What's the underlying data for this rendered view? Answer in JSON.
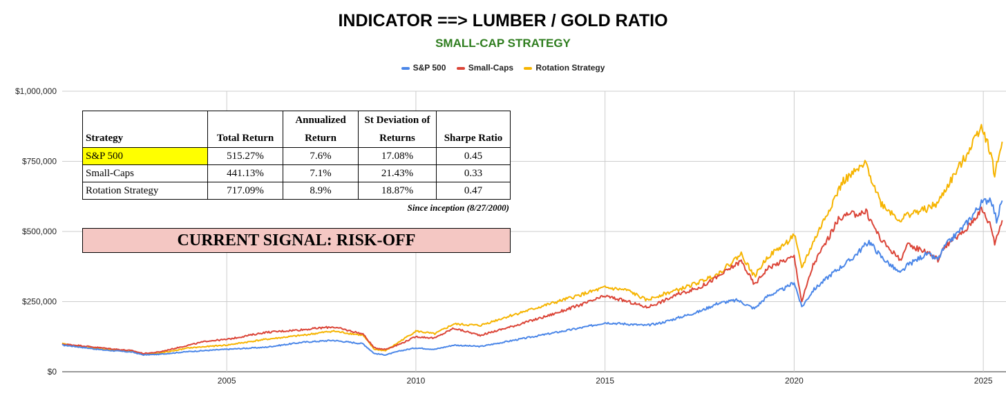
{
  "chart_data": {
    "type": "line",
    "title": "INDICATOR ==> LUMBER / GOLD RATIO",
    "subtitle": "SMALL-CAP STRATEGY",
    "legend_position": "top-center",
    "grid": true,
    "ylim": [
      0,
      1000000
    ],
    "y_ticks": [
      0,
      250000,
      500000,
      750000,
      1000000
    ],
    "y_tick_labels": [
      "$0",
      "$250,000",
      "$500,000",
      "$750,000",
      "$1,000,000"
    ],
    "xlim": [
      2000.65,
      2025.6
    ],
    "x_ticks": [
      2005,
      2010,
      2015,
      2020,
      2025
    ],
    "x_tick_labels": [
      "2005",
      "2010",
      "2015",
      "2020",
      "2025"
    ],
    "series": [
      {
        "name": "S&P 500",
        "color": "#4a86e8",
        "x": [
          2000.65,
          2001.0,
          2001.7,
          2002.5,
          2002.8,
          2003.2,
          2004.0,
          2005.0,
          2006.0,
          2007.0,
          2007.8,
          2008.6,
          2008.9,
          2009.2,
          2009.6,
          2010.0,
          2010.5,
          2011.0,
          2011.7,
          2012.5,
          2013.5,
          2014.5,
          2015.0,
          2015.6,
          2016.1,
          2016.5,
          2017.0,
          2017.5,
          2018.0,
          2018.5,
          2018.95,
          2019.3,
          2019.8,
          2020.0,
          2020.2,
          2020.5,
          2021.0,
          2021.5,
          2021.98,
          2022.3,
          2022.8,
          2023.0,
          2023.5,
          2023.8,
          2024.0,
          2024.5,
          2024.95,
          2025.2,
          2025.35,
          2025.5
        ],
        "values": [
          95000,
          90000,
          78000,
          70000,
          60000,
          62000,
          72000,
          80000,
          87000,
          105000,
          112000,
          100000,
          65000,
          60000,
          75000,
          85000,
          80000,
          95000,
          90000,
          110000,
          135000,
          160000,
          175000,
          170000,
          165000,
          175000,
          195000,
          215000,
          245000,
          255000,
          225000,
          270000,
          300000,
          320000,
          230000,
          290000,
          350000,
          400000,
          465000,
          410000,
          350000,
          380000,
          420000,
          400000,
          450000,
          520000,
          600000,
          620000,
          540000,
          610000
        ]
      },
      {
        "name": "Small-Caps",
        "color": "#db4437",
        "x": [
          2000.65,
          2001.0,
          2001.7,
          2002.5,
          2002.8,
          2003.2,
          2004.0,
          2004.5,
          2005.0,
          2006.0,
          2006.5,
          2007.0,
          2007.8,
          2008.6,
          2008.9,
          2009.2,
          2009.6,
          2010.0,
          2010.5,
          2011.0,
          2011.7,
          2012.5,
          2013.5,
          2014.5,
          2015.0,
          2015.6,
          2016.1,
          2016.5,
          2017.0,
          2017.5,
          2018.0,
          2018.6,
          2018.95,
          2019.3,
          2019.8,
          2020.0,
          2020.2,
          2020.5,
          2021.0,
          2021.2,
          2021.5,
          2021.9,
          2022.3,
          2022.8,
          2023.0,
          2023.5,
          2023.8,
          2024.0,
          2024.5,
          2024.95,
          2025.2,
          2025.3,
          2025.5
        ],
        "values": [
          98000,
          95000,
          85000,
          75000,
          65000,
          70000,
          95000,
          110000,
          115000,
          140000,
          145000,
          150000,
          160000,
          135000,
          85000,
          80000,
          100000,
          125000,
          120000,
          155000,
          130000,
          160000,
          200000,
          245000,
          270000,
          250000,
          230000,
          250000,
          280000,
          300000,
          340000,
          395000,
          310000,
          370000,
          400000,
          410000,
          250000,
          380000,
          500000,
          550000,
          560000,
          570000,
          470000,
          400000,
          450000,
          430000,
          400000,
          450000,
          500000,
          580000,
          520000,
          460000,
          540000
        ]
      },
      {
        "name": "Rotation Strategy",
        "color": "#f6b400",
        "x": [
          2000.65,
          2001.0,
          2001.7,
          2002.5,
          2002.8,
          2003.2,
          2004.0,
          2005.0,
          2006.0,
          2007.0,
          2007.8,
          2008.6,
          2008.9,
          2009.2,
          2009.6,
          2010.0,
          2010.5,
          2011.0,
          2011.7,
          2012.5,
          2013.5,
          2014.5,
          2015.0,
          2015.6,
          2016.1,
          2016.5,
          2017.0,
          2017.5,
          2018.0,
          2018.6,
          2018.95,
          2019.3,
          2019.8,
          2020.0,
          2020.2,
          2020.5,
          2021.0,
          2021.3,
          2021.7,
          2021.9,
          2022.3,
          2022.8,
          2023.0,
          2023.5,
          2023.8,
          2024.0,
          2024.5,
          2024.95,
          2025.2,
          2025.3,
          2025.5
        ],
        "values": [
          100000,
          92000,
          80000,
          72000,
          62000,
          65000,
          85000,
          95000,
          115000,
          130000,
          145000,
          130000,
          80000,
          75000,
          110000,
          145000,
          135000,
          170000,
          165000,
          200000,
          240000,
          280000,
          300000,
          290000,
          255000,
          275000,
          295000,
          320000,
          350000,
          420000,
          340000,
          410000,
          460000,
          490000,
          370000,
          460000,
          600000,
          680000,
          720000,
          740000,
          600000,
          540000,
          560000,
          580000,
          600000,
          650000,
          760000,
          880000,
          780000,
          700000,
          820000
        ]
      }
    ],
    "table": {
      "headers": [
        "Strategy",
        "Total Return",
        "Annualized Return",
        "St Deviation of Returns",
        "Sharpe Ratio"
      ],
      "rows": [
        [
          "S&P 500",
          "515.27%",
          "7.6%",
          "17.08%",
          "0.45"
        ],
        [
          "Small-Caps",
          "441.13%",
          "7.1%",
          "21.43%",
          "0.33"
        ],
        [
          "Rotation Strategy",
          "717.09%",
          "8.9%",
          "18.87%",
          "0.47"
        ]
      ],
      "highlight_color": "#ffff00",
      "note": "Since inception (8/27/2000)"
    },
    "signal": {
      "text": "CURRENT SIGNAL: RISK-OFF",
      "background": "#f4c7c3"
    }
  }
}
